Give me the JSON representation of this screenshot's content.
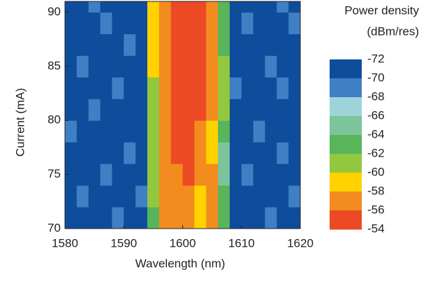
{
  "chart_data": {
    "type": "contour",
    "x_label": "Wavelength (nm)",
    "y_label": "Current (mA)",
    "xlim": [
      1580,
      1620
    ],
    "ylim": [
      70,
      91
    ],
    "xticks": [
      1580,
      1590,
      1600,
      1610,
      1620
    ],
    "yticks": [
      70,
      75,
      80,
      85,
      90
    ],
    "xbins": [
      1580,
      1582,
      1584,
      1586,
      1588,
      1590,
      1592,
      1594,
      1596,
      1598,
      1600,
      1602,
      1604,
      1606,
      1608,
      1610,
      1612,
      1614,
      1616,
      1618,
      1620
    ],
    "ybins": [
      70,
      72,
      74,
      76,
      78,
      80,
      82,
      84,
      86,
      88,
      90,
      91
    ],
    "z": [
      [
        -71,
        -71,
        -71,
        -71,
        -69,
        -71,
        -71,
        -63,
        -57,
        -57,
        -57,
        -59,
        -57,
        -63,
        -71,
        -71,
        -71,
        -69,
        -71,
        -71
      ],
      [
        -71,
        -69,
        -71,
        -71,
        -71,
        -71,
        -69,
        -61,
        -57,
        -57,
        -57,
        -59,
        -57,
        -63,
        -71,
        -71,
        -71,
        -71,
        -71,
        -69
      ],
      [
        -71,
        -71,
        -71,
        -69,
        -71,
        -71,
        -71,
        -61,
        -57,
        -57,
        -55,
        -57,
        -57,
        -65,
        -71,
        -69,
        -71,
        -71,
        -71,
        -71
      ],
      [
        -71,
        -71,
        -71,
        -71,
        -71,
        -69,
        -71,
        -61,
        -57,
        -55,
        -55,
        -57,
        -59,
        -65,
        -71,
        -71,
        -71,
        -71,
        -69,
        -71
      ],
      [
        -69,
        -71,
        -71,
        -71,
        -71,
        -71,
        -71,
        -61,
        -57,
        -55,
        -55,
        -57,
        -59,
        -63,
        -71,
        -71,
        -69,
        -71,
        -71,
        -71
      ],
      [
        -71,
        -71,
        -69,
        -71,
        -71,
        -71,
        -71,
        -61,
        -57,
        -55,
        -55,
        -55,
        -57,
        -61,
        -71,
        -71,
        -71,
        -71,
        -71,
        -71
      ],
      [
        -71,
        -71,
        -71,
        -71,
        -69,
        -71,
        -71,
        -61,
        -57,
        -55,
        -55,
        -55,
        -57,
        -61,
        -69,
        -71,
        -71,
        -71,
        -69,
        -71
      ],
      [
        -71,
        -69,
        -71,
        -71,
        -71,
        -71,
        -71,
        -59,
        -57,
        -55,
        -55,
        -55,
        -57,
        -61,
        -71,
        -71,
        -71,
        -69,
        -71,
        -71
      ],
      [
        -71,
        -71,
        -71,
        -71,
        -71,
        -69,
        -71,
        -59,
        -57,
        -55,
        -55,
        -55,
        -57,
        -63,
        -71,
        -71,
        -71,
        -71,
        -71,
        -71
      ],
      [
        -71,
        -71,
        -71,
        -69,
        -71,
        -71,
        -71,
        -59,
        -57,
        -55,
        -55,
        -55,
        -57,
        -63,
        -71,
        -69,
        -71,
        -71,
        -71,
        -69
      ],
      [
        -71,
        -71,
        -69,
        -71,
        -71,
        -71,
        -71,
        -59,
        -57,
        -55,
        -55,
        -55,
        -57,
        -63,
        -71,
        -71,
        -71,
        -71,
        -69,
        -71
      ]
    ],
    "colorbar": {
      "title": [
        "Power density",
        "(dBm/res)"
      ],
      "levels": [
        -72,
        -70,
        -68,
        -66,
        -64,
        -62,
        -60,
        -58,
        -56,
        -54
      ],
      "colors": [
        "#0e4d9c",
        "#3f7fc4",
        "#9ed3da",
        "#7cc49b",
        "#58b55a",
        "#92c83e",
        "#ffd200",
        "#f28c1e",
        "#ec4a25"
      ]
    }
  }
}
